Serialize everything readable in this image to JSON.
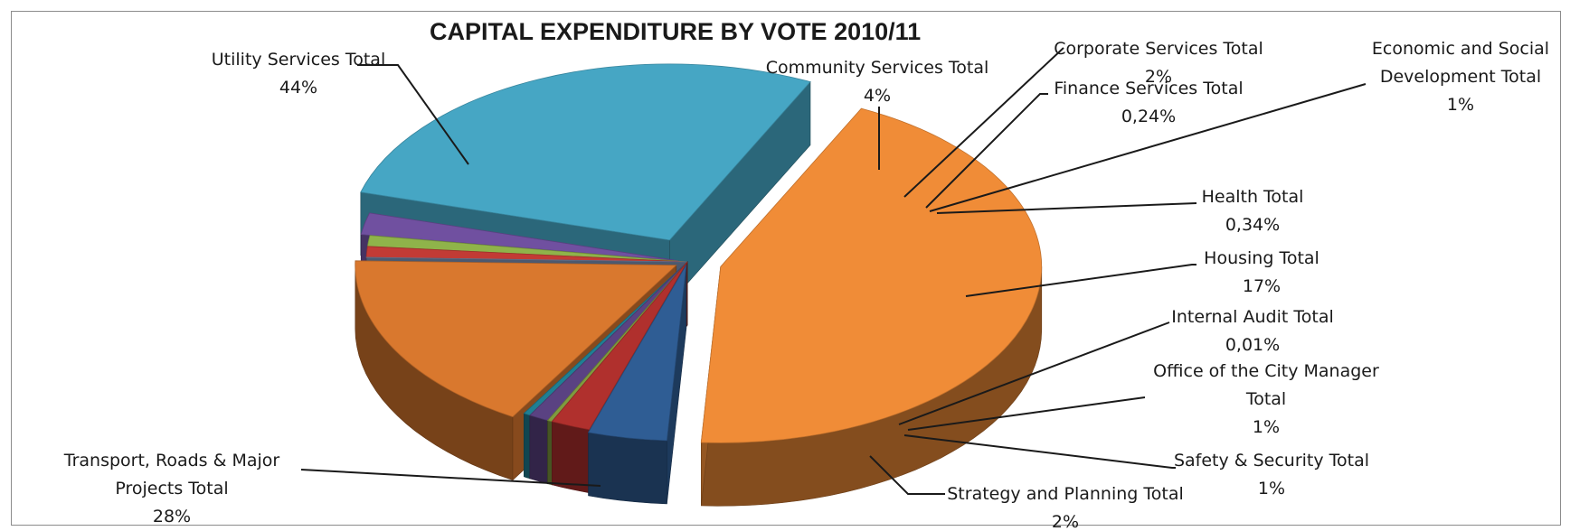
{
  "chart_data": {
    "type": "pie",
    "style": "3d-exploded",
    "title": "CAPITAL EXPENDITURE BY VOTE 2010/11",
    "slices": [
      {
        "name": "Utility Services Total",
        "pct_label": "44%",
        "value": 44,
        "color": "#f08c37",
        "label_lines": [
          "Utility Services Total",
          "44%"
        ]
      },
      {
        "name": "Community Services Total",
        "pct_label": "4%",
        "value": 4,
        "color": "#2f5d94",
        "label_lines": [
          "Community Services Total",
          "4%"
        ]
      },
      {
        "name": "Corporate Services Total",
        "pct_label": "2%",
        "value": 2,
        "color": "#b0302d",
        "label_lines": [
          "Corporate Services Total",
          "2%"
        ]
      },
      {
        "name": "Finance Services Total",
        "pct_label": "0,24%",
        "value": 0.24,
        "color": "#7f9b3f",
        "label_lines": [
          "Finance Services Total",
          "0,24%"
        ]
      },
      {
        "name": "Economic and Social Development Total",
        "pct_label": "1%",
        "value": 1,
        "color": "#5a4282",
        "label_lines": [
          "Economic and Social",
          "Development Total",
          "1%"
        ]
      },
      {
        "name": "Health Total",
        "pct_label": "0,34%",
        "value": 0.34,
        "color": "#1f7f93",
        "label_lines": [
          "Health Total",
          "0,34%"
        ]
      },
      {
        "name": "Housing Total",
        "pct_label": "17%",
        "value": 17,
        "color": "#d9782e",
        "label_lines": [
          "Housing Total",
          "17%"
        ]
      },
      {
        "name": "Internal Audit Total",
        "pct_label": "0,01%",
        "value": 0.01,
        "color": "#7a8fb3",
        "label_lines": [
          "Internal Audit Total",
          "0,01%"
        ]
      },
      {
        "name": "Office of the City Manager Total",
        "pct_label": "1%",
        "value": 1,
        "color": "#c23b35",
        "label_lines": [
          "Office of the City Manager",
          "Total",
          "1%"
        ]
      },
      {
        "name": "Safety & Security Total",
        "pct_label": "1%",
        "value": 1,
        "color": "#8fb34a",
        "label_lines": [
          "Safety & Security Total",
          "1%"
        ]
      },
      {
        "name": "Strategy and Planning Total",
        "pct_label": "2%",
        "value": 2,
        "color": "#7050a0",
        "label_lines": [
          "Strategy and Planning Total",
          "2%"
        ]
      },
      {
        "name": "Transport, Roads & Major Projects Total",
        "pct_label": "28%",
        "value": 28,
        "color": "#46a6c4",
        "label_lines": [
          "Transport, Roads & Major",
          "Projects Total",
          "28%"
        ]
      }
    ],
    "legend": "none"
  }
}
